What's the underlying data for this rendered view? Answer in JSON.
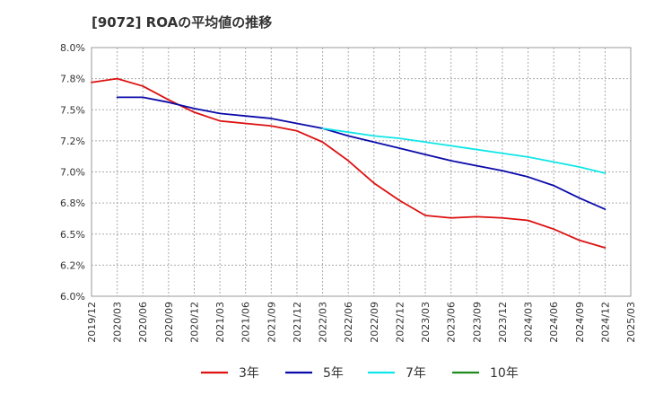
{
  "chart_data": {
    "type": "line",
    "title": "[9072]  ROAの平均値の推移",
    "xlabel": "",
    "ylabel": "",
    "ylim": [
      6.0,
      8.0
    ],
    "yticks": [
      "6.0%",
      "6.2%",
      "6.5%",
      "6.8%",
      "7.0%",
      "7.2%",
      "7.5%",
      "7.8%",
      "8.0%"
    ],
    "yticks_values": [
      6.0,
      6.25,
      6.5,
      6.75,
      7.0,
      7.25,
      7.5,
      7.75,
      8.0
    ],
    "x_categories": [
      "2019/12",
      "2020/03",
      "2020/06",
      "2020/09",
      "2020/12",
      "2021/03",
      "2021/06",
      "2021/09",
      "2021/12",
      "2022/03",
      "2022/06",
      "2022/09",
      "2022/12",
      "2023/03",
      "2023/06",
      "2023/09",
      "2023/12",
      "2024/03",
      "2024/06",
      "2024/09",
      "2024/12",
      "2025/03"
    ],
    "grid": true,
    "legend_position": "bottom",
    "series": [
      {
        "name": "3年",
        "color": "#dd1111",
        "values": [
          7.72,
          7.75,
          7.69,
          7.58,
          7.48,
          7.41,
          7.39,
          7.37,
          7.33,
          7.24,
          7.09,
          6.91,
          6.77,
          6.65,
          6.63,
          6.64,
          6.63,
          6.61,
          6.54,
          6.45,
          6.39,
          null
        ]
      },
      {
        "name": "5年",
        "color": "#0a0aaa",
        "values": [
          null,
          7.6,
          7.6,
          7.56,
          7.51,
          7.47,
          7.45,
          7.43,
          7.39,
          7.35,
          7.29,
          7.24,
          7.19,
          7.14,
          7.09,
          7.05,
          7.01,
          6.96,
          6.89,
          6.79,
          6.7,
          null
        ]
      },
      {
        "name": "7年",
        "color": "#11e6e6",
        "values": [
          null,
          null,
          null,
          null,
          null,
          null,
          null,
          null,
          null,
          7.35,
          7.32,
          7.29,
          7.27,
          7.24,
          7.21,
          7.18,
          7.15,
          7.12,
          7.08,
          7.04,
          6.99,
          null
        ]
      },
      {
        "name": "10年",
        "color": "#1e8c1e",
        "values": [
          null,
          null,
          null,
          null,
          null,
          null,
          null,
          null,
          null,
          null,
          null,
          null,
          null,
          null,
          null,
          null,
          null,
          null,
          null,
          null,
          null,
          null
        ]
      }
    ]
  }
}
